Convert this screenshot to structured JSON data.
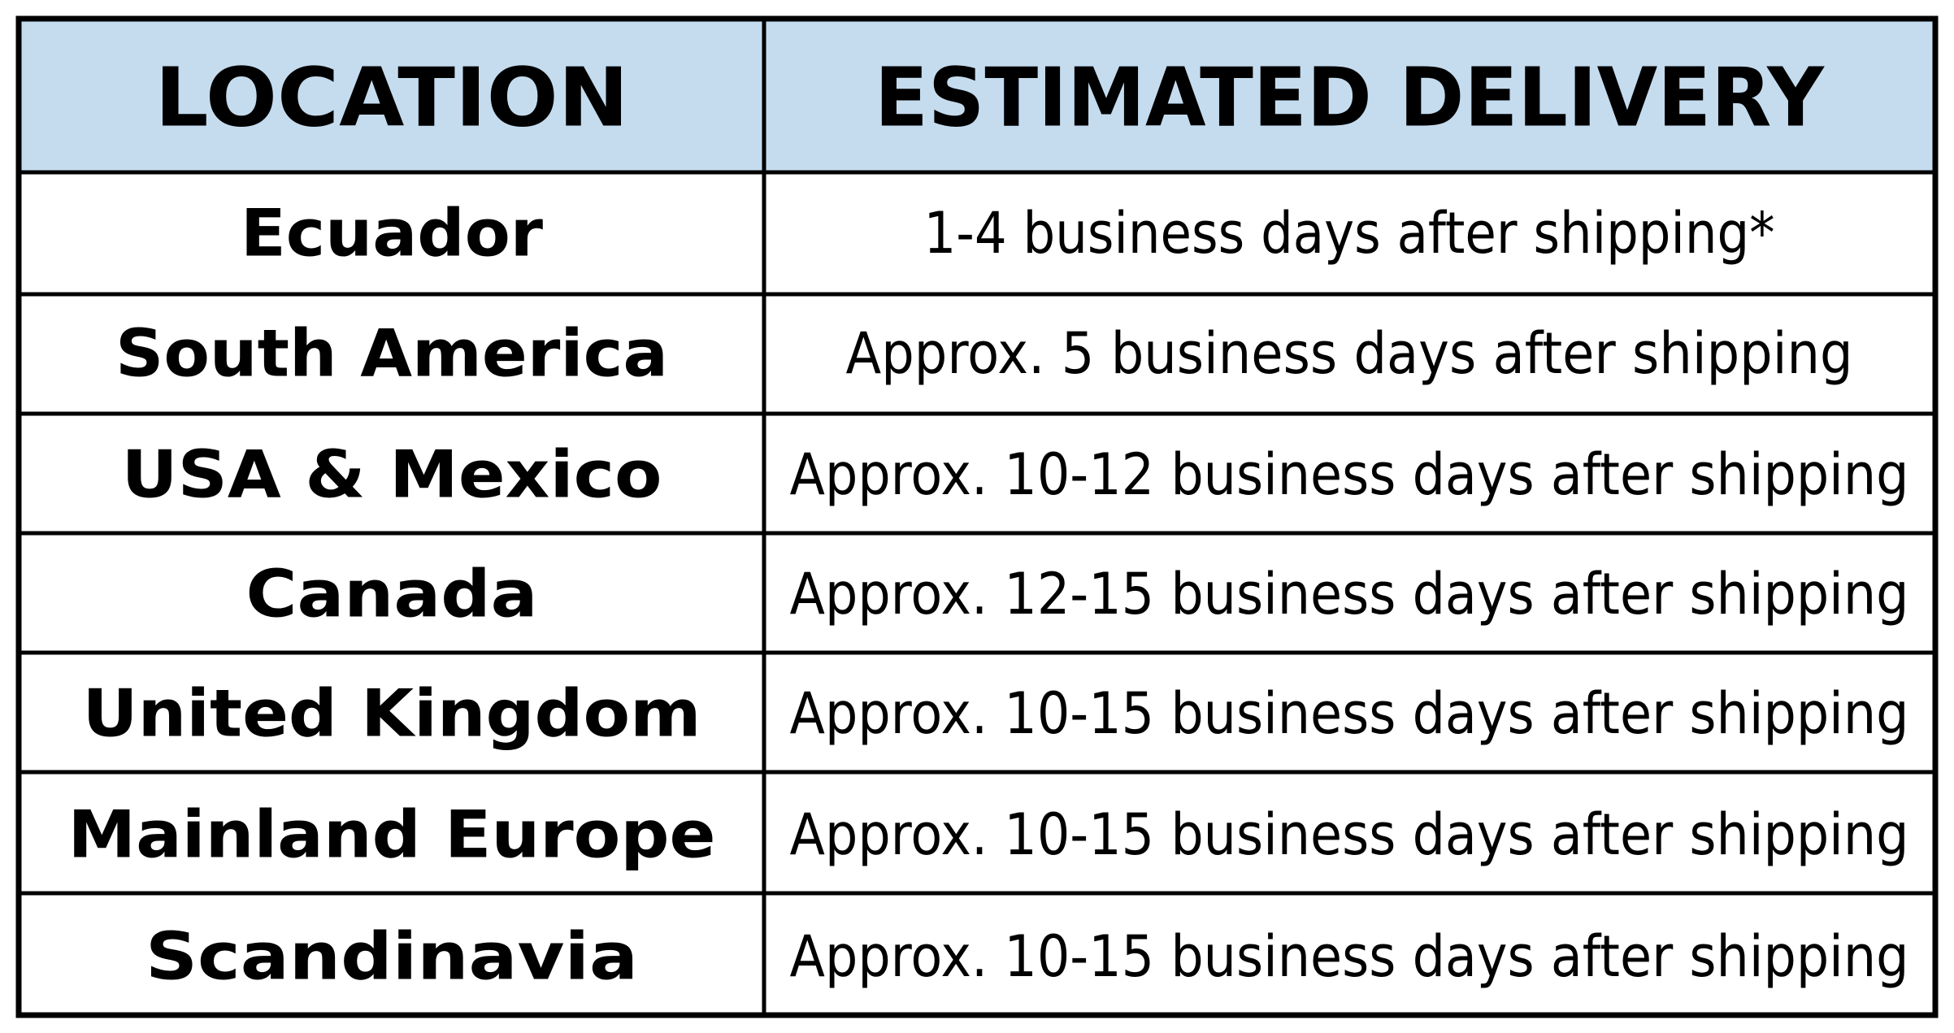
{
  "table": {
    "header": [
      "LOCATION",
      "ESTIMATED DELIVERY"
    ],
    "rows": [
      [
        "Ecuador",
        "1-4 business days after shipping*"
      ],
      [
        "South America",
        "Approx. 5 business days after shipping"
      ],
      [
        "USA & Mexico",
        "Approx. 10-12 business days after shipping"
      ],
      [
        "Canada",
        "Approx. 12-15 business days after shipping"
      ],
      [
        "United Kingdom",
        "Approx. 10-15 business days after shipping"
      ],
      [
        "Mainland Europe",
        "Approx. 10-15 business days after shipping"
      ],
      [
        "Scandinavia",
        "Approx. 10-15 business days after shipping"
      ]
    ]
  }
}
